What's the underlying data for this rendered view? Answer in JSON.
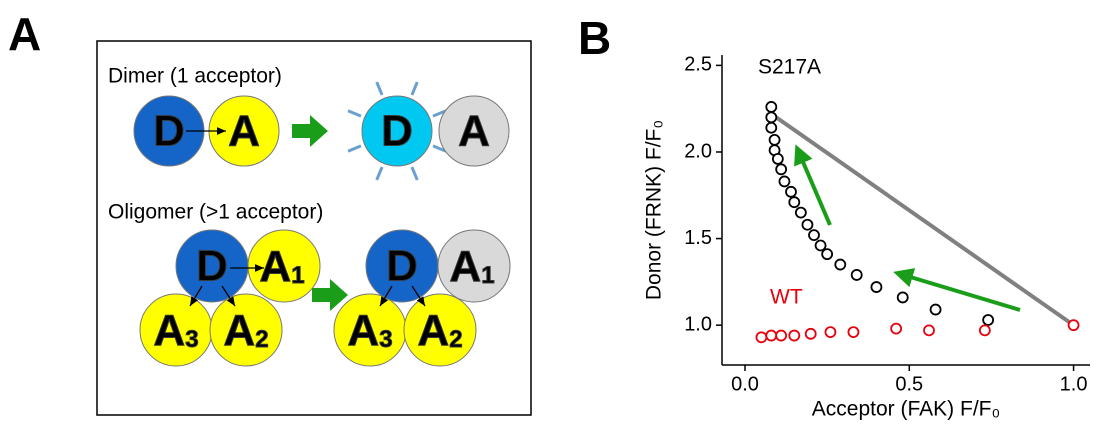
{
  "panel_labels": [
    "A",
    "B"
  ],
  "diagram": {
    "dimer": {
      "title": "Dimer (1 acceptor)",
      "before": [
        {
          "label": "D"
        },
        {
          "label": "A"
        }
      ],
      "after": [
        {
          "label": "D"
        },
        {
          "label": "A"
        }
      ]
    },
    "oligomer": {
      "title": "Oligomer (>1 acceptor)",
      "before": [
        {
          "label": "D"
        },
        {
          "label": "A",
          "sub": "1"
        },
        {
          "label": "A",
          "sub": "3"
        },
        {
          "label": "A",
          "sub": "2"
        }
      ],
      "after": [
        {
          "label": "D"
        },
        {
          "label": "A",
          "sub": "1"
        },
        {
          "label": "A",
          "sub": "3"
        },
        {
          "label": "A",
          "sub": "2"
        }
      ]
    }
  },
  "chart_data": {
    "type": "scatter",
    "x_label": "Acceptor (FAK) F/F₀",
    "y_label": "Donor (FRNK) F/F₀",
    "xlim": [
      -0.07,
      1.05
    ],
    "ylim": [
      0.77,
      2.56
    ],
    "xticks": [
      {
        "value": 0,
        "label": "0.0"
      },
      {
        "value": 0.5,
        "label": "0.5"
      },
      {
        "value": 1,
        "label": "1.0"
      }
    ],
    "yticks": [
      {
        "value": 1,
        "label": "1.0"
      },
      {
        "value": 1.5,
        "label": "1.5"
      },
      {
        "value": 2,
        "label": "2.0"
      },
      {
        "value": 2.5,
        "label": "2.5"
      }
    ],
    "series": [
      {
        "name": "S217A",
        "color": "#000000",
        "x": [
          0.08,
          0.08,
          0.08,
          0.09,
          0.09,
          0.1,
          0.11,
          0.12,
          0.14,
          0.15,
          0.17,
          0.19,
          0.21,
          0.23,
          0.25,
          0.29,
          0.34,
          0.4,
          0.48,
          0.58,
          0.74
        ],
        "values": [
          2.26,
          2.2,
          2.14,
          2.07,
          2.01,
          1.96,
          1.9,
          1.83,
          1.77,
          1.71,
          1.65,
          1.58,
          1.52,
          1.46,
          1.41,
          1.35,
          1.29,
          1.22,
          1.16,
          1.09,
          1.03
        ]
      },
      {
        "name": "WT",
        "color": "#e8000b",
        "x": [
          0.05,
          0.08,
          0.11,
          0.15,
          0.2,
          0.26,
          0.33,
          0.46,
          0.56,
          0.73,
          1.0
        ],
        "values": [
          0.93,
          0.94,
          0.94,
          0.94,
          0.95,
          0.96,
          0.96,
          0.98,
          0.97,
          0.97,
          1.0
        ]
      }
    ],
    "reference_line": {
      "color": "#808080",
      "x": [
        0.08,
        1.0
      ],
      "values": [
        2.22,
        1.0
      ]
    }
  }
}
